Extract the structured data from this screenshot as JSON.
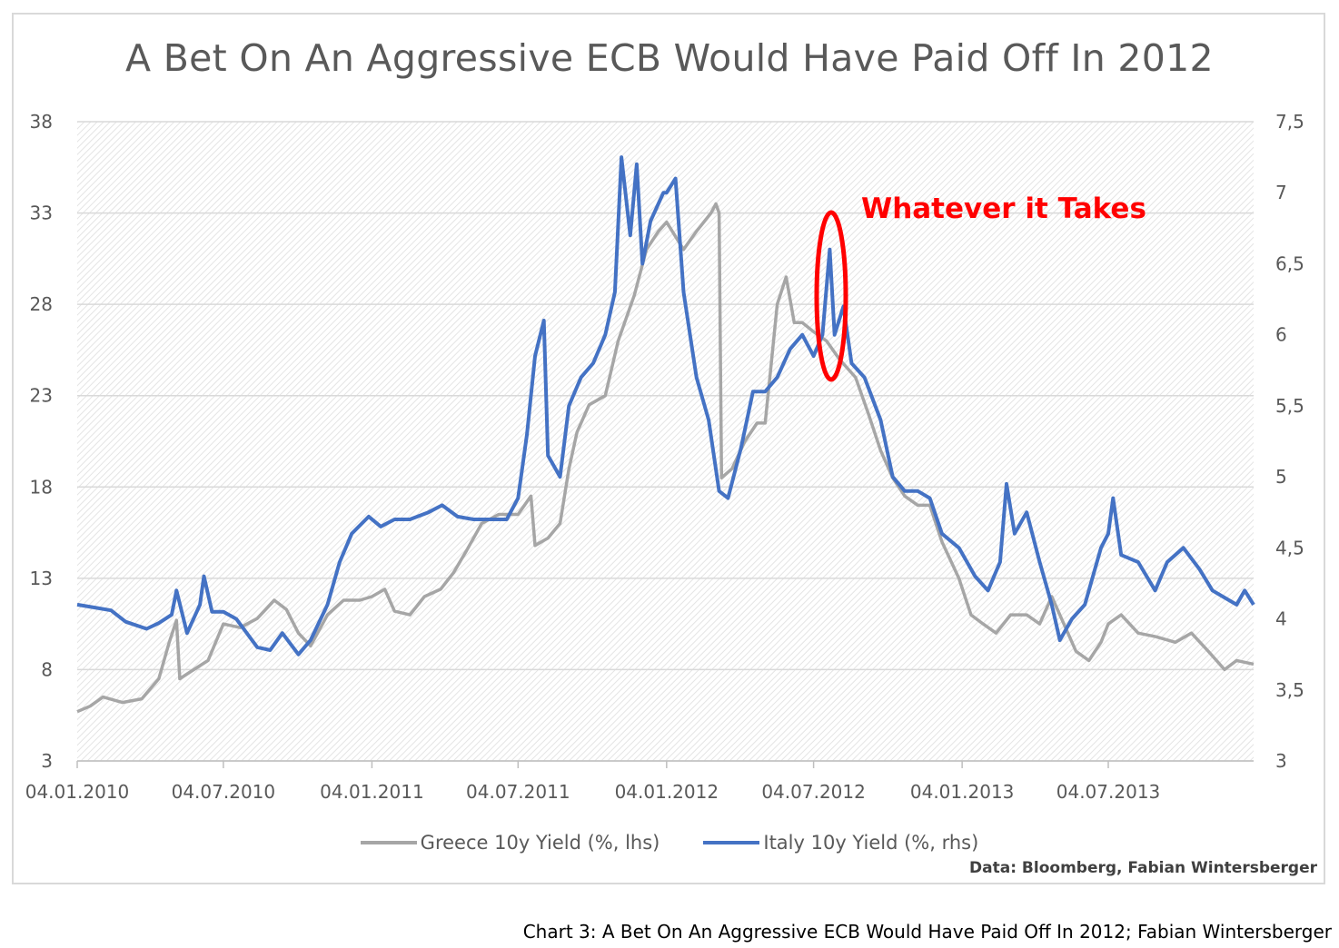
{
  "title": "A Bet On An Aggressive ECB Would Have Paid Off In 2012",
  "annotation": "Whatever it Takes",
  "source": "Data: Bloomberg, Fabian Wintersberger",
  "caption": "Chart 3: A Bet On An Aggressive ECB Would Have Paid Off In 2012; Fabian Wintersberger",
  "colors": {
    "greece": "#a6a6a6",
    "italy": "#4472c4",
    "annotation": "#ff0000",
    "grid": "#d9d9d9"
  },
  "chart_data": {
    "type": "line",
    "title": "A Bet On An Aggressive ECB Would Have Paid Off In 2012",
    "x_ticks": [
      "04.01.2010",
      "04.07.2010",
      "04.01.2011",
      "04.07.2011",
      "04.01.2012",
      "04.07.2012",
      "04.01.2013",
      "04.07.2013"
    ],
    "x_range": [
      "2010-01-04",
      "2013-12-31"
    ],
    "y_left": {
      "range": [
        3,
        38
      ],
      "ticks": [
        3,
        8,
        13,
        18,
        23,
        28,
        33,
        38
      ]
    },
    "y_right": {
      "range": [
        3,
        7.5
      ],
      "ticks": [
        "3",
        "3,5",
        "4",
        "4,5",
        "5",
        "5,5",
        "6",
        "6,5",
        "7",
        "7,5"
      ]
    },
    "grid": true,
    "legend_position": "bottom",
    "series": [
      {
        "name": "Greece 10y Yield (%, lhs)",
        "axis": "left",
        "points": [
          [
            "2010-01-04",
            5.7
          ],
          [
            "2010-01-20",
            6.0
          ],
          [
            "2010-02-05",
            6.5
          ],
          [
            "2010-03-01",
            6.2
          ],
          [
            "2010-03-25",
            6.4
          ],
          [
            "2010-04-15",
            7.5
          ],
          [
            "2010-04-28",
            9.5
          ],
          [
            "2010-05-07",
            10.7
          ],
          [
            "2010-05-11",
            7.5
          ],
          [
            "2010-05-25",
            7.9
          ],
          [
            "2010-06-15",
            8.5
          ],
          [
            "2010-07-04",
            10.5
          ],
          [
            "2010-07-25",
            10.3
          ],
          [
            "2010-08-15",
            10.8
          ],
          [
            "2010-09-05",
            11.8
          ],
          [
            "2010-09-20",
            11.3
          ],
          [
            "2010-10-05",
            10.0
          ],
          [
            "2010-10-20",
            9.3
          ],
          [
            "2010-11-10",
            11.0
          ],
          [
            "2010-11-30",
            11.8
          ],
          [
            "2010-12-20",
            11.8
          ],
          [
            "2011-01-04",
            12.0
          ],
          [
            "2011-01-20",
            12.4
          ],
          [
            "2011-02-01",
            11.2
          ],
          [
            "2011-02-20",
            11.0
          ],
          [
            "2011-03-10",
            12.0
          ],
          [
            "2011-03-30",
            12.4
          ],
          [
            "2011-04-15",
            13.3
          ],
          [
            "2011-05-01",
            14.5
          ],
          [
            "2011-05-20",
            16.0
          ],
          [
            "2011-06-10",
            16.5
          ],
          [
            "2011-06-25",
            16.5
          ],
          [
            "2011-07-04",
            16.5
          ],
          [
            "2011-07-20",
            17.5
          ],
          [
            "2011-07-25",
            14.8
          ],
          [
            "2011-08-10",
            15.2
          ],
          [
            "2011-08-25",
            16.0
          ],
          [
            "2011-09-05",
            19.0
          ],
          [
            "2011-09-15",
            21.0
          ],
          [
            "2011-09-30",
            22.5
          ],
          [
            "2011-10-20",
            23.0
          ],
          [
            "2011-11-05",
            26.0
          ],
          [
            "2011-11-25",
            28.5
          ],
          [
            "2011-12-10",
            31.0
          ],
          [
            "2011-12-25",
            32.0
          ],
          [
            "2012-01-04",
            32.5
          ],
          [
            "2012-01-25",
            31.0
          ],
          [
            "2012-02-10",
            32.0
          ],
          [
            "2012-02-28",
            33.0
          ],
          [
            "2012-03-05",
            33.5
          ],
          [
            "2012-03-09",
            33.0
          ],
          [
            "2012-03-12",
            18.5
          ],
          [
            "2012-03-25",
            19.0
          ],
          [
            "2012-04-10",
            20.5
          ],
          [
            "2012-04-25",
            21.5
          ],
          [
            "2012-05-05",
            21.5
          ],
          [
            "2012-05-12",
            24.5
          ],
          [
            "2012-05-20",
            28.0
          ],
          [
            "2012-05-31",
            29.5
          ],
          [
            "2012-06-10",
            27.0
          ],
          [
            "2012-06-20",
            27.0
          ],
          [
            "2012-07-04",
            26.5
          ],
          [
            "2012-07-20",
            26.0
          ],
          [
            "2012-08-05",
            25.0
          ],
          [
            "2012-08-25",
            24.0
          ],
          [
            "2012-09-10",
            22.0
          ],
          [
            "2012-09-25",
            20.0
          ],
          [
            "2012-10-10",
            18.5
          ],
          [
            "2012-10-25",
            17.5
          ],
          [
            "2012-11-10",
            17.0
          ],
          [
            "2012-11-25",
            17.0
          ],
          [
            "2012-12-10",
            15.0
          ],
          [
            "2012-12-31",
            13.0
          ],
          [
            "2013-01-15",
            11.0
          ],
          [
            "2013-01-30",
            10.5
          ],
          [
            "2013-02-15",
            10.0
          ],
          [
            "2013-03-05",
            11.0
          ],
          [
            "2013-03-25",
            11.0
          ],
          [
            "2013-04-10",
            10.5
          ],
          [
            "2013-04-25",
            12.0
          ],
          [
            "2013-05-10",
            10.5
          ],
          [
            "2013-05-25",
            9.0
          ],
          [
            "2013-06-10",
            8.5
          ],
          [
            "2013-06-25",
            9.5
          ],
          [
            "2013-07-04",
            10.5
          ],
          [
            "2013-07-20",
            11.0
          ],
          [
            "2013-08-10",
            10.0
          ],
          [
            "2013-09-01",
            9.8
          ],
          [
            "2013-09-25",
            9.5
          ],
          [
            "2013-10-15",
            10.0
          ],
          [
            "2013-11-05",
            9.0
          ],
          [
            "2013-11-25",
            8.0
          ],
          [
            "2013-12-10",
            8.5
          ],
          [
            "2013-12-31",
            8.3
          ]
        ]
      },
      {
        "name": "Italy 10y Yield (%, rhs)",
        "axis": "right",
        "points": [
          [
            "2010-01-04",
            4.1
          ],
          [
            "2010-01-25",
            4.08
          ],
          [
            "2010-02-15",
            4.06
          ],
          [
            "2010-03-05",
            3.98
          ],
          [
            "2010-03-31",
            3.93
          ],
          [
            "2010-04-15",
            3.97
          ],
          [
            "2010-05-01",
            4.03
          ],
          [
            "2010-05-07",
            4.2
          ],
          [
            "2010-05-20",
            3.9
          ],
          [
            "2010-06-05",
            4.1
          ],
          [
            "2010-06-10",
            4.3
          ],
          [
            "2010-06-20",
            4.05
          ],
          [
            "2010-07-04",
            4.05
          ],
          [
            "2010-07-20",
            4.0
          ],
          [
            "2010-08-15",
            3.8
          ],
          [
            "2010-08-31",
            3.78
          ],
          [
            "2010-09-15",
            3.9
          ],
          [
            "2010-10-05",
            3.75
          ],
          [
            "2010-10-20",
            3.85
          ],
          [
            "2010-11-10",
            4.1
          ],
          [
            "2010-11-25",
            4.4
          ],
          [
            "2010-12-10",
            4.6
          ],
          [
            "2010-12-31",
            4.72
          ],
          [
            "2011-01-15",
            4.65
          ],
          [
            "2011-02-01",
            4.7
          ],
          [
            "2011-02-20",
            4.7
          ],
          [
            "2011-03-15",
            4.75
          ],
          [
            "2011-04-01",
            4.8
          ],
          [
            "2011-04-20",
            4.72
          ],
          [
            "2011-05-10",
            4.7
          ],
          [
            "2011-06-05",
            4.7
          ],
          [
            "2011-06-20",
            4.7
          ],
          [
            "2011-07-04",
            4.85
          ],
          [
            "2011-07-15",
            5.3
          ],
          [
            "2011-07-25",
            5.85
          ],
          [
            "2011-08-05",
            6.1
          ],
          [
            "2011-08-10",
            5.15
          ],
          [
            "2011-08-25",
            5.0
          ],
          [
            "2011-09-05",
            5.5
          ],
          [
            "2011-09-20",
            5.7
          ],
          [
            "2011-10-05",
            5.8
          ],
          [
            "2011-10-20",
            6.0
          ],
          [
            "2011-11-01",
            6.3
          ],
          [
            "2011-11-09",
            7.25
          ],
          [
            "2011-11-20",
            6.7
          ],
          [
            "2011-11-28",
            7.2
          ],
          [
            "2011-12-05",
            6.5
          ],
          [
            "2011-12-15",
            6.8
          ],
          [
            "2011-12-31",
            7.0
          ],
          [
            "2012-01-04",
            7.0
          ],
          [
            "2012-01-15",
            7.1
          ],
          [
            "2012-01-25",
            6.3
          ],
          [
            "2012-02-10",
            5.7
          ],
          [
            "2012-02-25",
            5.4
          ],
          [
            "2012-03-09",
            4.9
          ],
          [
            "2012-03-20",
            4.85
          ],
          [
            "2012-04-05",
            5.2
          ],
          [
            "2012-04-20",
            5.6
          ],
          [
            "2012-05-05",
            5.6
          ],
          [
            "2012-05-20",
            5.7
          ],
          [
            "2012-06-05",
            5.9
          ],
          [
            "2012-06-20",
            6.0
          ],
          [
            "2012-07-04",
            5.85
          ],
          [
            "2012-07-15",
            6.0
          ],
          [
            "2012-07-24",
            6.6
          ],
          [
            "2012-07-30",
            6.0
          ],
          [
            "2012-08-10",
            6.2
          ],
          [
            "2012-08-20",
            5.8
          ],
          [
            "2012-09-05",
            5.7
          ],
          [
            "2012-09-25",
            5.4
          ],
          [
            "2012-10-10",
            5.0
          ],
          [
            "2012-10-25",
            4.9
          ],
          [
            "2012-11-10",
            4.9
          ],
          [
            "2012-11-25",
            4.85
          ],
          [
            "2012-12-10",
            4.6
          ],
          [
            "2012-12-31",
            4.5
          ],
          [
            "2013-01-20",
            4.3
          ],
          [
            "2013-02-05",
            4.2
          ],
          [
            "2013-02-20",
            4.4
          ],
          [
            "2013-02-28",
            4.95
          ],
          [
            "2013-03-10",
            4.6
          ],
          [
            "2013-03-25",
            4.75
          ],
          [
            "2013-04-10",
            4.4
          ],
          [
            "2013-04-25",
            4.1
          ],
          [
            "2013-05-05",
            3.85
          ],
          [
            "2013-05-20",
            4.0
          ],
          [
            "2013-06-05",
            4.1
          ],
          [
            "2013-06-25",
            4.5
          ],
          [
            "2013-07-04",
            4.6
          ],
          [
            "2013-07-10",
            4.85
          ],
          [
            "2013-07-20",
            4.45
          ],
          [
            "2013-08-10",
            4.4
          ],
          [
            "2013-08-31",
            4.2
          ],
          [
            "2013-09-15",
            4.4
          ],
          [
            "2013-10-05",
            4.5
          ],
          [
            "2013-10-25",
            4.35
          ],
          [
            "2013-11-10",
            4.2
          ],
          [
            "2013-11-25",
            4.15
          ],
          [
            "2013-12-10",
            4.1
          ],
          [
            "2013-12-20",
            4.2
          ],
          [
            "2013-12-31",
            4.1
          ]
        ]
      }
    ]
  }
}
